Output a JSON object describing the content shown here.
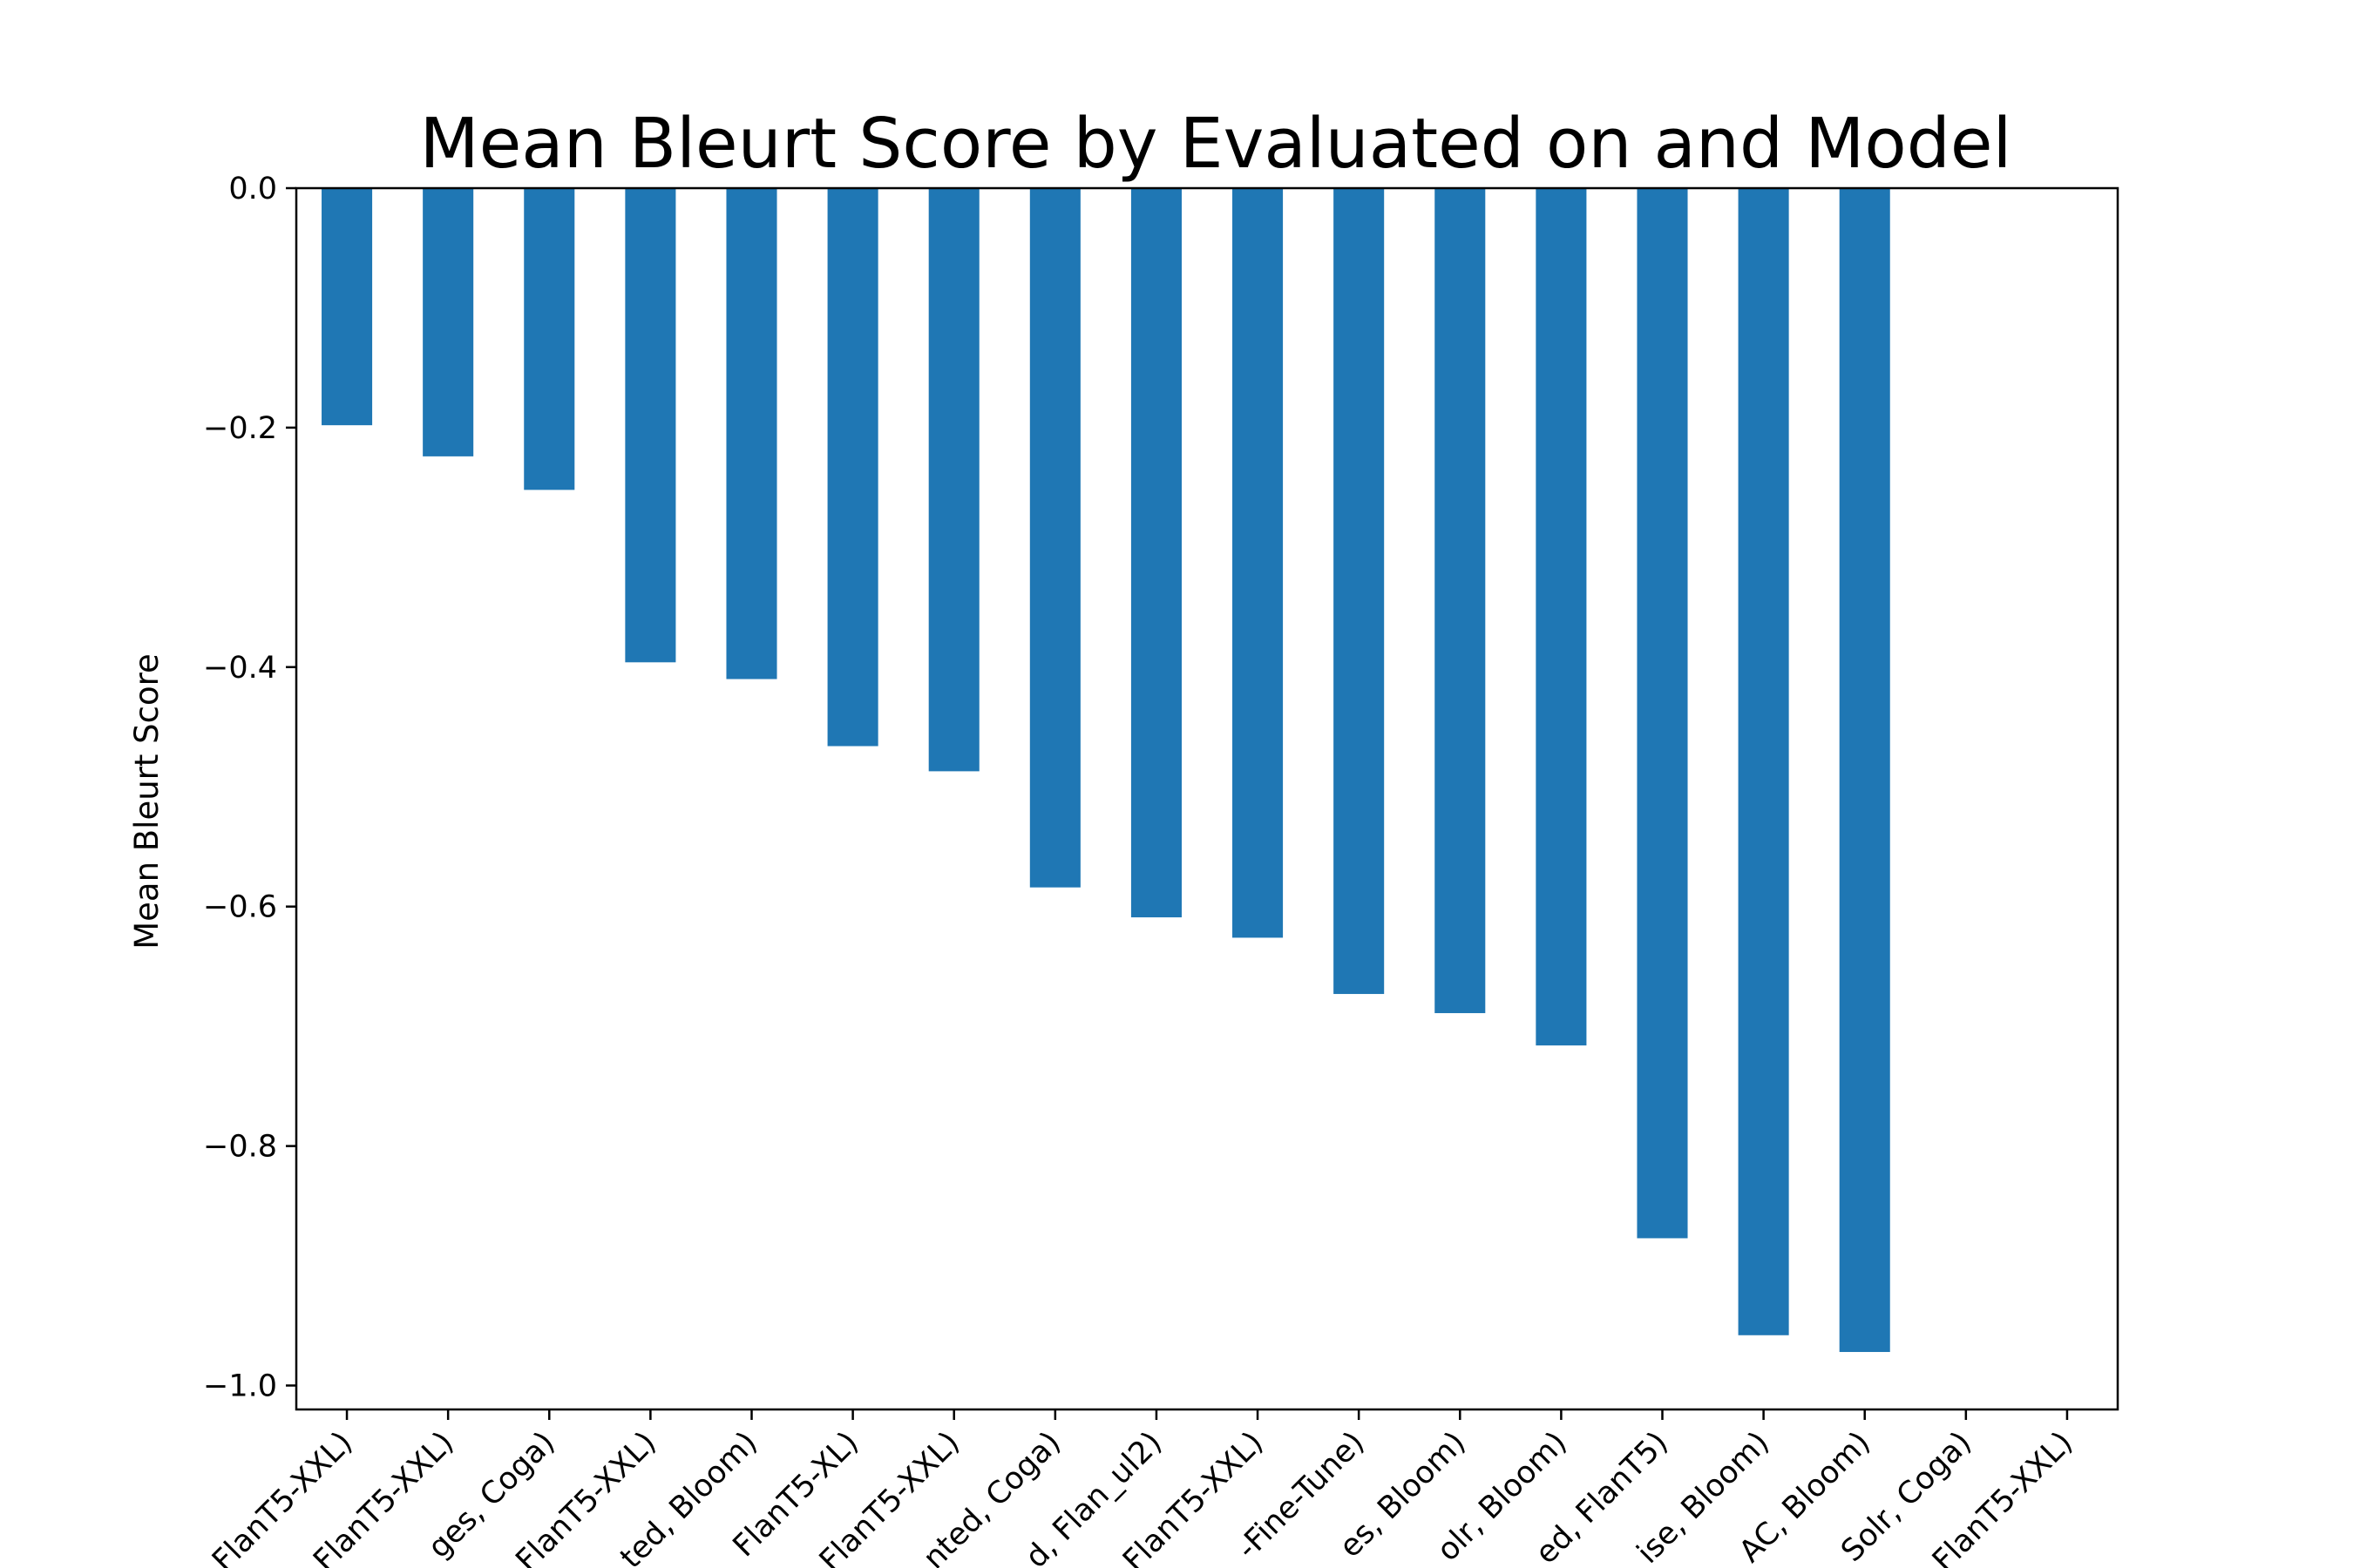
{
  "chart_data": {
    "type": "bar",
    "title": "Mean Bleurt Score by Evaluated on and Model",
    "xlabel": "",
    "ylabel": "Mean Bleurt Score",
    "ylim": [
      -1.02,
      0.0
    ],
    "yticks": [
      0.0,
      -0.2,
      -0.4,
      -0.6,
      -0.8,
      -1.0
    ],
    "ytick_labels": [
      "0.0",
      "−0.2",
      "−0.4",
      "−0.6",
      "−0.8",
      "−1.0"
    ],
    "grid": false,
    "bar_color": "#1f77b4",
    "categories": [
      "FlanT5-XXL)",
      "FlanT5-XXL)",
      "ges, Coga)",
      "FlanT5-XXL)",
      "ted, Bloom)",
      "FlanT5-XL)",
      "FlanT5-XXL)",
      "nted, Coga)",
      "d, Flan_ul2)",
      "FlanT5-XXL)",
      "-Fine-Tune)",
      "es, Bloom)",
      "olr, Bloom)",
      "ed, FlanT5)",
      "ise, Bloom)",
      "AC, Bloom)",
      "Solr, Coga)",
      "FlanT5-XXL)"
    ],
    "values": [
      -0.198,
      -0.224,
      -0.252,
      -0.396,
      -0.41,
      -0.466,
      -0.487,
      -0.584,
      -0.609,
      -0.626,
      -0.673,
      -0.689,
      -0.716,
      -0.877,
      -0.958,
      -0.972,
      0.0,
      0.0
    ]
  }
}
